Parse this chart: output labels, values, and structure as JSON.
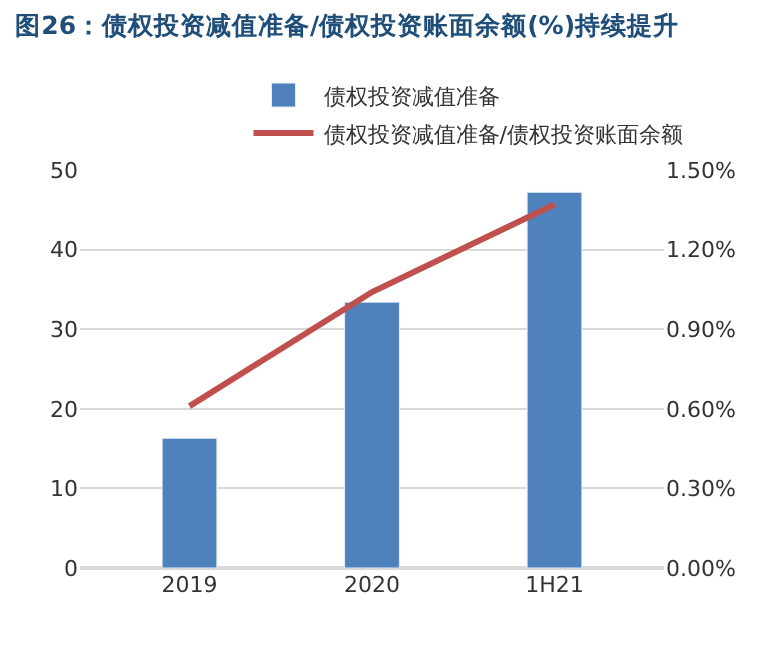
{
  "chart_data": {
    "type": "bar",
    "title": "图26：债权投资减值准备/债权投资账面余额(%)持续提升",
    "categories": [
      "2019",
      "2020",
      "1H21"
    ],
    "series": [
      {
        "name": "债权投资减值准备",
        "color": "#4f81bd",
        "values": [
          16.3,
          33.4,
          47.2
        ]
      },
      {
        "name": "债权投资减值准备/债权投资账面余额",
        "type": "line",
        "axis": "y2",
        "color": "#c0504d",
        "values": [
          0.61,
          1.04,
          1.37
        ]
      }
    ],
    "ylim": [
      0,
      50
    ],
    "yticks": [
      0,
      10,
      20,
      30,
      40,
      50
    ],
    "y2lim": [
      0,
      1.5
    ],
    "y2ticks": [
      {
        "value": 0,
        "label": "0.00%"
      },
      {
        "value": 0.3,
        "label": "0.30%"
      },
      {
        "value": 0.6,
        "label": "0.60%"
      },
      {
        "value": 0.9,
        "label": "0.90%"
      },
      {
        "value": 1.2,
        "label": "1.20%"
      },
      {
        "value": 1.5,
        "label": "1.50%"
      }
    ],
    "grid": "y",
    "legend": "top",
    "marker": "none",
    "line_style": "solid"
  }
}
